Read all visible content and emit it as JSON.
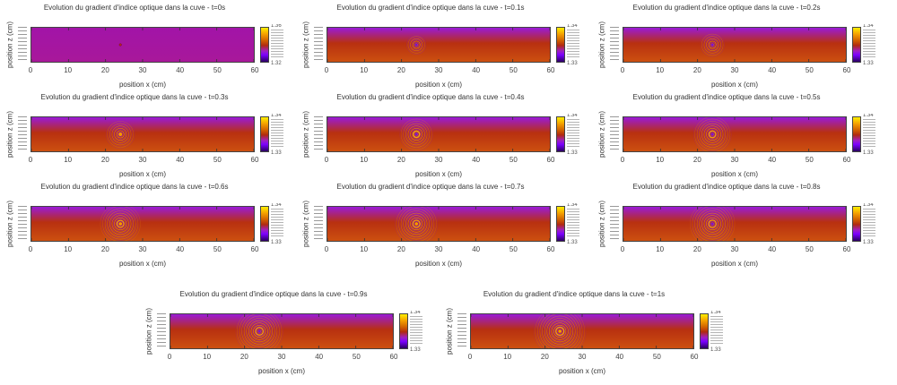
{
  "chart_data": [
    {
      "type": "heatmap",
      "title": "Evolution du gradient d'indice optique dans la cuve - t=0s",
      "t": 0,
      "xlabel": "position x (cm)",
      "ylabel": "position z (cm)",
      "xlim": [
        0,
        60
      ],
      "x_ticks": [
        "0",
        "10",
        "20",
        "30",
        "40",
        "50",
        "60"
      ],
      "colorbar": {
        "max_label": "1.36",
        "min_label": "1.32",
        "range": [
          1.32,
          1.36
        ]
      },
      "source_x": 24,
      "ripple_strength": 0.0,
      "background": "uniform"
    },
    {
      "type": "heatmap",
      "title": "Evolution du gradient d'indice optique dans la cuve - t=0.1s",
      "t": 0.1,
      "xlabel": "position x (cm)",
      "ylabel": "position z (cm)",
      "xlim": [
        0,
        60
      ],
      "x_ticks": [
        "0",
        "10",
        "20",
        "30",
        "40",
        "50",
        "60"
      ],
      "colorbar": {
        "max_label": "1.34",
        "min_label": "1.33",
        "range": [
          1.33,
          1.34
        ]
      },
      "source_x": 24,
      "ripple_strength": 0.3,
      "background": "gradient"
    },
    {
      "type": "heatmap",
      "title": "Evolution du gradient d'indice optique dans la cuve - t=0.2s",
      "t": 0.2,
      "xlabel": "position x (cm)",
      "ylabel": "position z (cm)",
      "xlim": [
        0,
        60
      ],
      "x_ticks": [
        "0",
        "10",
        "20",
        "30",
        "40",
        "50",
        "60"
      ],
      "colorbar": {
        "max_label": "1.34",
        "min_label": "1.33",
        "range": [
          1.33,
          1.34
        ]
      },
      "source_x": 24,
      "ripple_strength": 0.4,
      "background": "gradient"
    },
    {
      "type": "heatmap",
      "title": "Evolution du gradient d'indice optique dans la cuve - t=0.3s",
      "t": 0.3,
      "xlabel": "position x (cm)",
      "ylabel": "position z (cm)",
      "xlim": [
        0,
        60
      ],
      "x_ticks": [
        "0",
        "10",
        "20",
        "30",
        "40",
        "50",
        "60"
      ],
      "colorbar": {
        "max_label": "1.34",
        "min_label": "1.33",
        "range": [
          1.33,
          1.34
        ]
      },
      "source_x": 24,
      "ripple_strength": 0.5,
      "background": "gradient"
    },
    {
      "type": "heatmap",
      "title": "Evolution du gradient d'indice optique dans la cuve - t=0.4s",
      "t": 0.4,
      "xlabel": "position x (cm)",
      "ylabel": "position z (cm)",
      "xlim": [
        0,
        60
      ],
      "x_ticks": [
        "0",
        "10",
        "20",
        "30",
        "40",
        "50",
        "60"
      ],
      "colorbar": {
        "max_label": "1.34",
        "min_label": "1.33",
        "range": [
          1.33,
          1.34
        ]
      },
      "source_x": 24,
      "ripple_strength": 0.6,
      "background": "gradient"
    },
    {
      "type": "heatmap",
      "title": "Evolution du gradient d'indice optique dans la cuve - t=0.5s",
      "t": 0.5,
      "xlabel": "position x (cm)",
      "ylabel": "position z (cm)",
      "xlim": [
        0,
        60
      ],
      "x_ticks": [
        "0",
        "10",
        "20",
        "30",
        "40",
        "50",
        "60"
      ],
      "colorbar": {
        "max_label": "1.34",
        "min_label": "1.33",
        "range": [
          1.33,
          1.34
        ]
      },
      "source_x": 24,
      "ripple_strength": 0.7,
      "background": "gradient"
    },
    {
      "type": "heatmap",
      "title": "Evolution du gradient d'indice optique dans la cuve - t=0.6s",
      "t": 0.6,
      "xlabel": "position x (cm)",
      "ylabel": "position z (cm)",
      "xlim": [
        0,
        60
      ],
      "x_ticks": [
        "0",
        "10",
        "20",
        "30",
        "40",
        "50",
        "60"
      ],
      "colorbar": {
        "max_label": "1.34",
        "min_label": "1.33",
        "range": [
          1.33,
          1.34
        ]
      },
      "source_x": 24,
      "ripple_strength": 0.75,
      "background": "gradient"
    },
    {
      "type": "heatmap",
      "title": "Evolution du gradient d'indice optique dans la cuve - t=0.7s",
      "t": 0.7,
      "xlabel": "position x (cm)",
      "ylabel": "position z (cm)",
      "xlim": [
        0,
        60
      ],
      "x_ticks": [
        "0",
        "10",
        "20",
        "30",
        "40",
        "50",
        "60"
      ],
      "colorbar": {
        "max_label": "1.34",
        "min_label": "1.33",
        "range": [
          1.33,
          1.34
        ]
      },
      "source_x": 24,
      "ripple_strength": 0.8,
      "background": "gradient"
    },
    {
      "type": "heatmap",
      "title": "Evolution du gradient d'indice optique dans la cuve - t=0.8s",
      "t": 0.8,
      "xlabel": "position x (cm)",
      "ylabel": "position z (cm)",
      "xlim": [
        0,
        60
      ],
      "x_ticks": [
        "0",
        "10",
        "20",
        "30",
        "40",
        "50",
        "60"
      ],
      "colorbar": {
        "max_label": "1.34",
        "min_label": "1.33",
        "range": [
          1.33,
          1.34
        ]
      },
      "source_x": 24,
      "ripple_strength": 0.85,
      "background": "gradient"
    },
    {
      "type": "heatmap",
      "title": "Evolution du gradient d'indice optique dans la cuve - t=0.9s",
      "t": 0.9,
      "xlabel": "position x (cm)",
      "ylabel": "position z (cm)",
      "xlim": [
        0,
        60
      ],
      "x_ticks": [
        "0",
        "10",
        "20",
        "30",
        "40",
        "50",
        "60"
      ],
      "colorbar": {
        "max_label": "1.34",
        "min_label": "1.33",
        "range": [
          1.33,
          1.34
        ]
      },
      "source_x": 24,
      "ripple_strength": 0.9,
      "background": "gradient"
    },
    {
      "type": "heatmap",
      "title": "Evolution du gradient d'indice optique dans la cuve - t=1s",
      "t": 1,
      "xlabel": "position x (cm)",
      "ylabel": "position z (cm)",
      "xlim": [
        0,
        60
      ],
      "x_ticks": [
        "0",
        "10",
        "20",
        "30",
        "40",
        "50",
        "60"
      ],
      "colorbar": {
        "max_label": "1.34",
        "min_label": "1.33",
        "range": [
          1.33,
          1.34
        ]
      },
      "source_x": 24,
      "ripple_strength": 1.0,
      "background": "gradient"
    }
  ],
  "colors": {
    "uniform_bg": "#a214a8",
    "top": "#9a1ad8",
    "mid": "#b83010",
    "bottom": "#cc5010",
    "ring_a": "#f0a010",
    "ring_b": "#8a20d0"
  }
}
